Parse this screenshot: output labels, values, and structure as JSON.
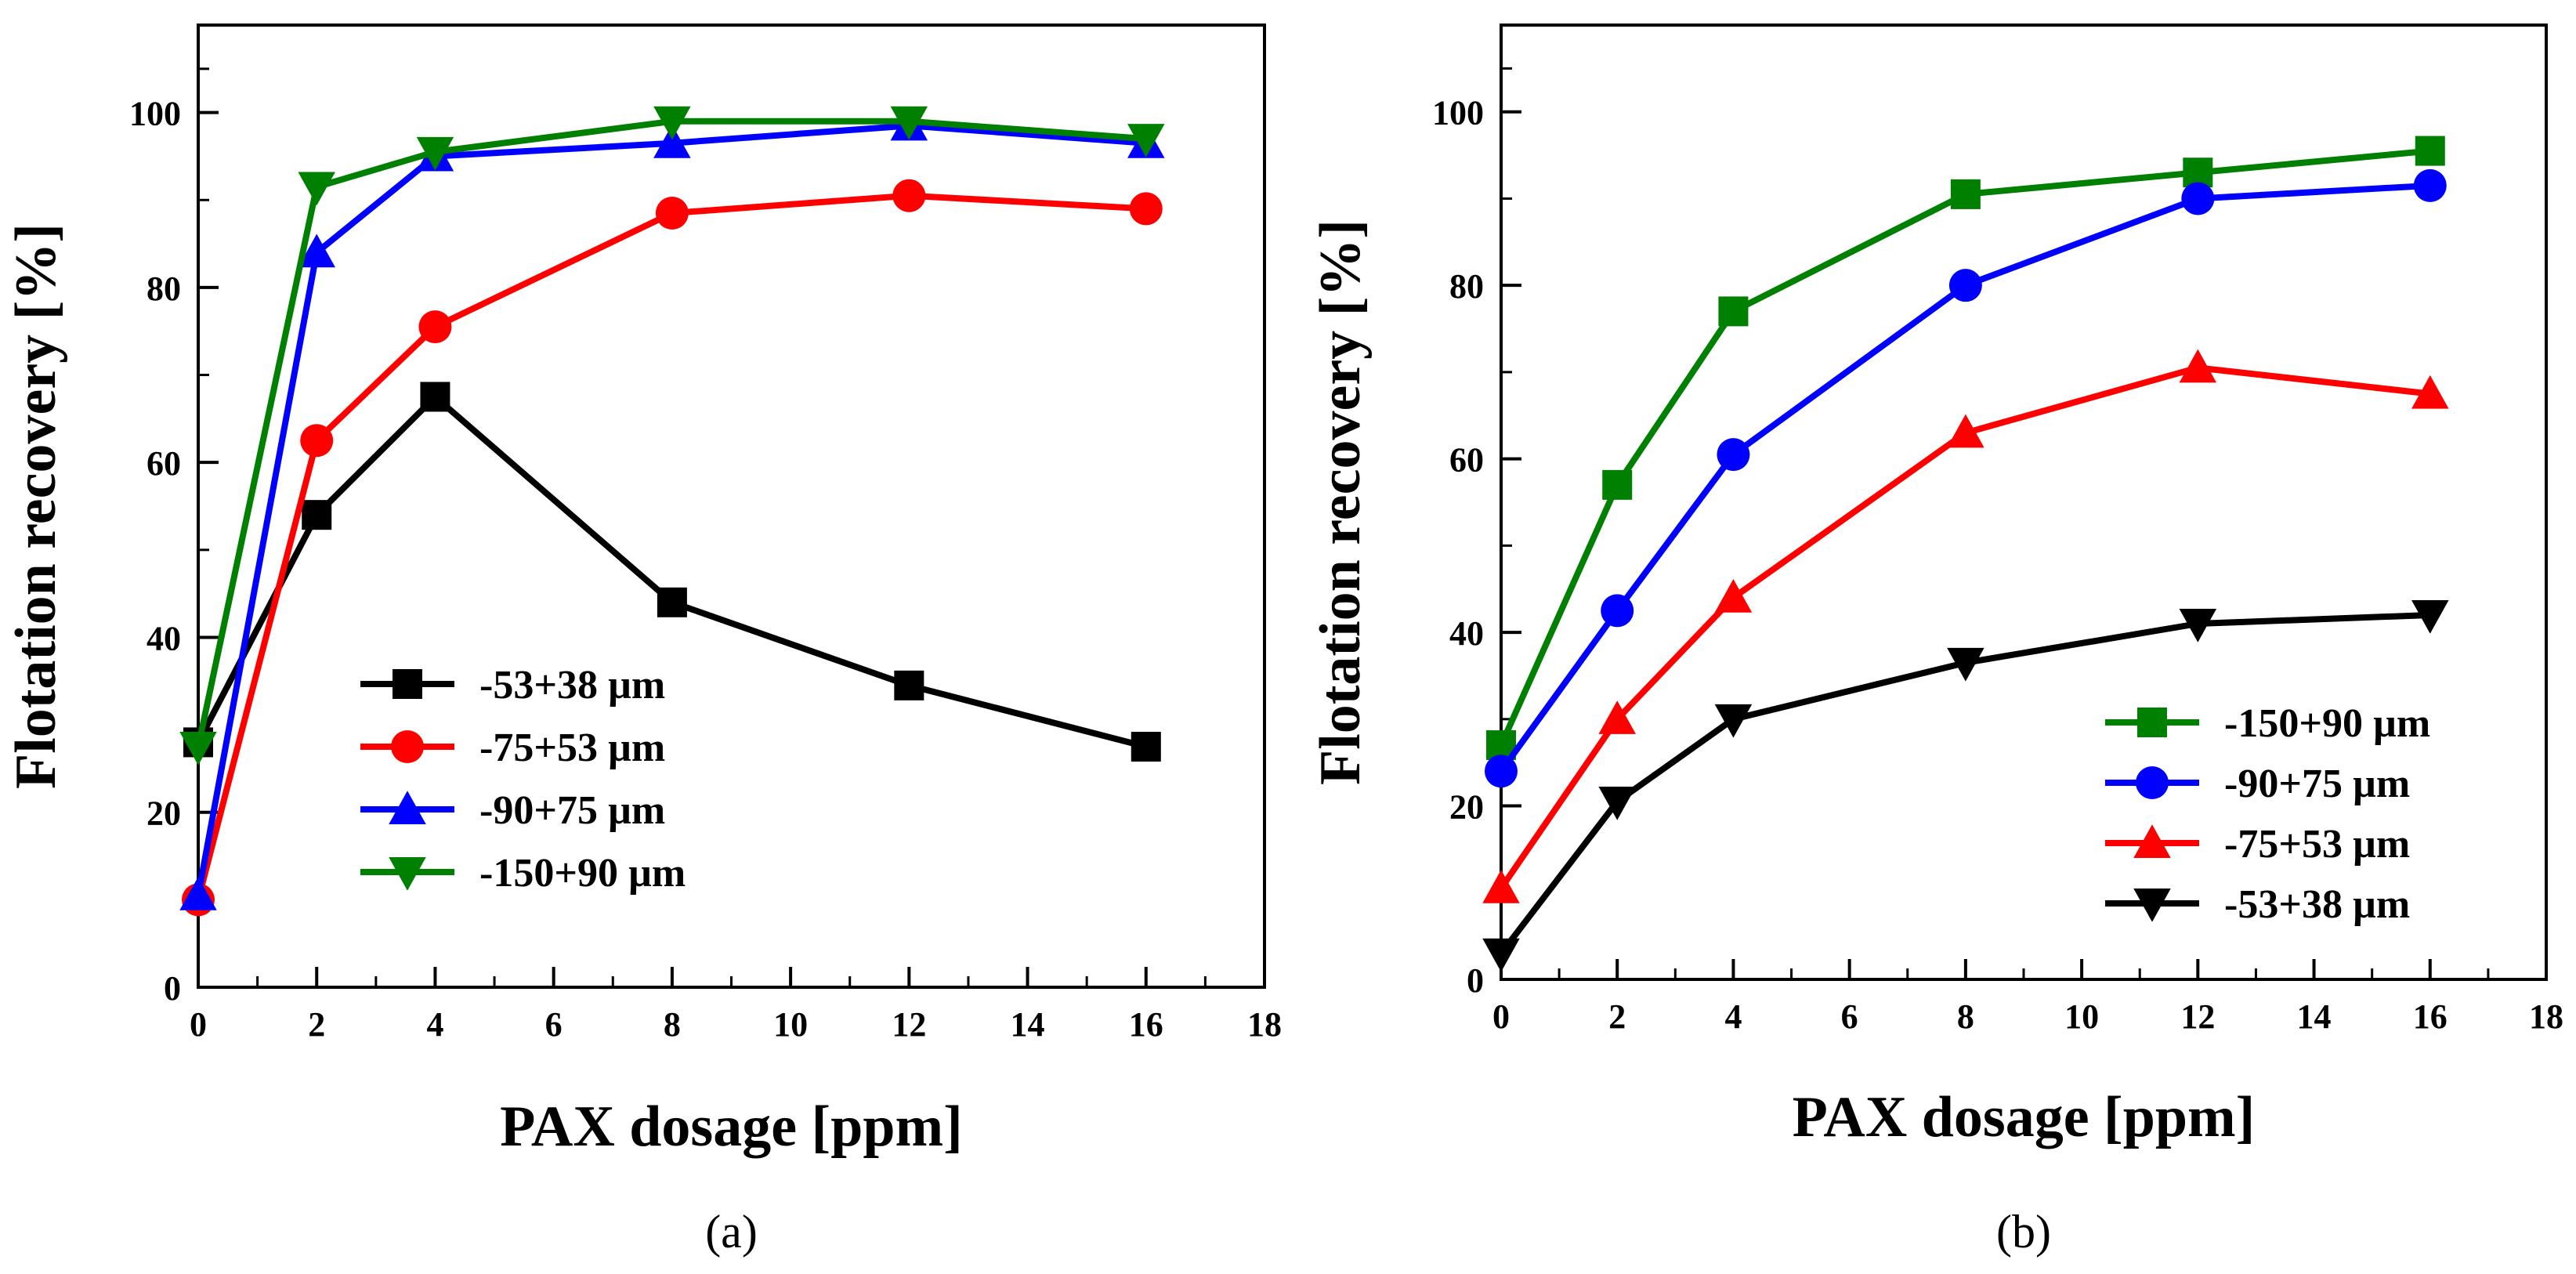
{
  "figure": {
    "panel_labels": [
      "(a)",
      "(b)"
    ]
  },
  "chart_data": [
    {
      "type": "line",
      "panel": "(a)",
      "title": "",
      "xlabel": "PAX dosage [ppm]",
      "ylabel": "Flotation recovery [%]",
      "xlim": [
        0,
        18
      ],
      "ylim": [
        0,
        110
      ],
      "xticks": [
        0,
        2,
        4,
        6,
        8,
        10,
        12,
        14,
        16,
        18
      ],
      "yticks": [
        0,
        20,
        40,
        60,
        80,
        100
      ],
      "grid": false,
      "legend_position": "lower-center",
      "series": [
        {
          "name": "-53+38 µm",
          "color": "#000000",
          "marker": "square",
          "x": [
            0,
            2,
            4,
            8,
            12,
            16
          ],
          "y": [
            28,
            54,
            67.5,
            44,
            34.5,
            27.5
          ]
        },
        {
          "name": "-75+53 µm",
          "color": "#ff0000",
          "marker": "circle",
          "x": [
            0,
            2,
            4,
            8,
            12,
            16
          ],
          "y": [
            10,
            62.5,
            75.5,
            88.5,
            90.5,
            89
          ]
        },
        {
          "name": "-90+75 µm",
          "color": "#0000ff",
          "marker": "triangle-up",
          "x": [
            0,
            2,
            4,
            8,
            12,
            16
          ],
          "y": [
            10.5,
            84,
            95,
            96.5,
            98.5,
            96.5
          ]
        },
        {
          "name": "-150+90 µm",
          "color": "#008000",
          "marker": "triangle-down",
          "x": [
            0,
            2,
            4,
            8,
            12,
            16
          ],
          "y": [
            27.5,
            91.5,
            95.5,
            99,
            99,
            97
          ]
        }
      ]
    },
    {
      "type": "line",
      "panel": "(b)",
      "title": "",
      "xlabel": "PAX dosage [ppm]",
      "ylabel": "Flotation recovery [%]",
      "xlim": [
        0,
        18
      ],
      "ylim": [
        0,
        110
      ],
      "xticks": [
        0,
        2,
        4,
        6,
        8,
        10,
        12,
        14,
        16,
        18
      ],
      "yticks": [
        0,
        20,
        40,
        60,
        80,
        100
      ],
      "grid": false,
      "legend_position": "lower-right",
      "series": [
        {
          "name": "-150+90 µm",
          "color": "#008000",
          "marker": "square",
          "x": [
            0,
            2,
            4,
            8,
            12,
            16
          ],
          "y": [
            27,
            57,
            77,
            90.5,
            93,
            95.5
          ]
        },
        {
          "name": "-90+75 µm",
          "color": "#0000ff",
          "marker": "circle",
          "x": [
            0,
            2,
            4,
            8,
            12,
            16
          ],
          "y": [
            24,
            42.5,
            60.5,
            80,
            90,
            91.5
          ]
        },
        {
          "name": "-75+53 µm",
          "color": "#ff0000",
          "marker": "triangle-up",
          "x": [
            0,
            2,
            4,
            8,
            12,
            16
          ],
          "y": [
            10.5,
            30,
            44,
            63,
            70.5,
            67.5
          ]
        },
        {
          "name": "-53+38 µm",
          "color": "#000000",
          "marker": "triangle-down",
          "x": [
            0,
            2,
            4,
            8,
            12,
            16
          ],
          "y": [
            3,
            20.5,
            30,
            36.5,
            41,
            42
          ]
        }
      ]
    }
  ]
}
